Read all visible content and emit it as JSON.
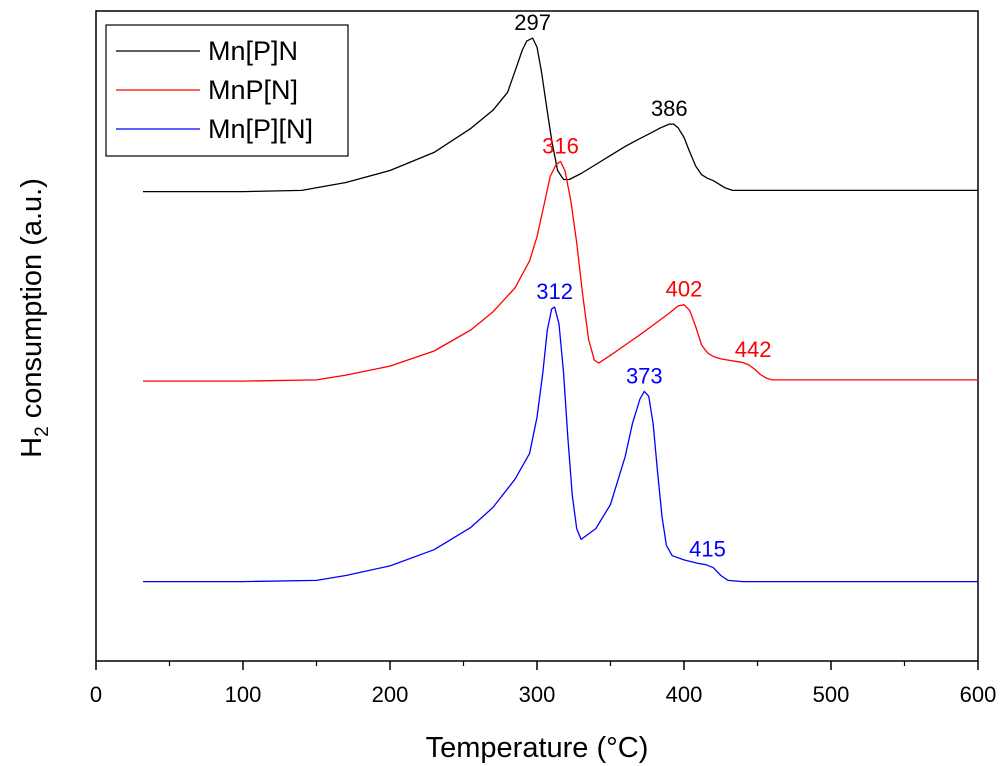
{
  "chart_data": {
    "type": "line",
    "title": "",
    "xlabel": "Temperature (°C)",
    "ylabel_main": "H",
    "ylabel_sub": "2",
    "ylabel_rest": " consumption (a.u.)",
    "xlim": [
      0,
      600
    ],
    "ylim": [
      -0.2,
      10.6
    ],
    "xticks": [
      0,
      100,
      200,
      300,
      400,
      500,
      600
    ],
    "xtick_labels": [
      "0",
      "100",
      "200",
      "300",
      "400",
      "500",
      "600"
    ],
    "grid": false,
    "legend_position": "top-left",
    "series": [
      {
        "name": "Mn[P]N",
        "color": "#000000",
        "x": [
          32,
          100,
          140,
          170,
          200,
          230,
          255,
          270,
          280,
          285,
          290,
          293,
          297,
          300,
          303,
          306,
          310,
          314,
          318,
          322,
          330,
          340,
          350,
          360,
          370,
          378,
          384,
          390,
          393,
          396,
          400,
          404,
          408,
          412,
          416,
          420,
          424,
          428,
          433,
          440,
          500,
          550,
          600
        ],
        "y": [
          7.6,
          7.6,
          7.62,
          7.75,
          7.95,
          8.25,
          8.65,
          8.95,
          9.25,
          9.6,
          9.95,
          10.1,
          10.15,
          10.0,
          9.6,
          9.1,
          8.45,
          7.95,
          7.8,
          7.8,
          7.9,
          8.05,
          8.2,
          8.35,
          8.48,
          8.58,
          8.66,
          8.72,
          8.72,
          8.66,
          8.5,
          8.25,
          8.02,
          7.88,
          7.82,
          7.78,
          7.72,
          7.66,
          7.62,
          7.62,
          7.62,
          7.62,
          7.62
        ]
      },
      {
        "name": "MnP[N]",
        "color": "#ff0000",
        "x": [
          32,
          100,
          150,
          170,
          200,
          230,
          255,
          270,
          285,
          295,
          300,
          305,
          309,
          313,
          316,
          319,
          323,
          327,
          331,
          335,
          339,
          342,
          350,
          360,
          370,
          380,
          390,
          396,
          400,
          404,
          408,
          412,
          416,
          420,
          425,
          430,
          435,
          440,
          444,
          448,
          452,
          456,
          460,
          500,
          550,
          600
        ],
        "y": [
          4.45,
          4.45,
          4.47,
          4.55,
          4.7,
          4.95,
          5.3,
          5.6,
          6.0,
          6.45,
          6.85,
          7.4,
          7.85,
          8.05,
          8.1,
          7.95,
          7.45,
          6.75,
          5.9,
          5.15,
          4.8,
          4.75,
          4.88,
          5.05,
          5.22,
          5.4,
          5.58,
          5.7,
          5.72,
          5.62,
          5.35,
          5.05,
          4.92,
          4.86,
          4.82,
          4.8,
          4.78,
          4.76,
          4.72,
          4.65,
          4.56,
          4.5,
          4.47,
          4.47,
          4.47,
          4.47
        ]
      },
      {
        "name": "Mn[P][N]",
        "color": "#0000ff",
        "x": [
          32,
          100,
          150,
          170,
          200,
          230,
          255,
          270,
          285,
          295,
          300,
          304,
          307,
          310,
          312,
          315,
          318,
          321,
          324,
          327,
          330,
          340,
          350,
          360,
          365,
          370,
          373,
          376,
          379,
          382,
          385,
          388,
          392,
          400,
          405,
          410,
          415,
          420,
          425,
          430,
          440,
          500,
          550,
          600
        ],
        "y": [
          1.12,
          1.12,
          1.14,
          1.22,
          1.38,
          1.65,
          2.02,
          2.35,
          2.82,
          3.25,
          3.85,
          4.6,
          5.3,
          5.65,
          5.68,
          5.4,
          4.6,
          3.5,
          2.55,
          2.0,
          1.82,
          2.0,
          2.4,
          3.2,
          3.75,
          4.15,
          4.28,
          4.2,
          3.75,
          2.95,
          2.2,
          1.72,
          1.55,
          1.48,
          1.45,
          1.42,
          1.4,
          1.35,
          1.22,
          1.14,
          1.12,
          1.12,
          1.12,
          1.12
        ]
      }
    ],
    "annotations": [
      {
        "text": "297",
        "x": 297,
        "y": 10.15,
        "color": "#000000"
      },
      {
        "text": "386",
        "x": 390,
        "y": 8.72,
        "color": "#000000"
      },
      {
        "text": "316",
        "x": 316,
        "y": 8.1,
        "color": "#ff0000"
      },
      {
        "text": "402",
        "x": 400,
        "y": 5.72,
        "color": "#ff0000"
      },
      {
        "text": "442",
        "x": 447,
        "y": 4.72,
        "color": "#ff0000"
      },
      {
        "text": "312",
        "x": 312,
        "y": 5.68,
        "color": "#0000ff"
      },
      {
        "text": "373",
        "x": 373,
        "y": 4.28,
        "color": "#0000ff"
      },
      {
        "text": "415",
        "x": 416,
        "y": 1.4,
        "color": "#0000ff"
      }
    ]
  }
}
